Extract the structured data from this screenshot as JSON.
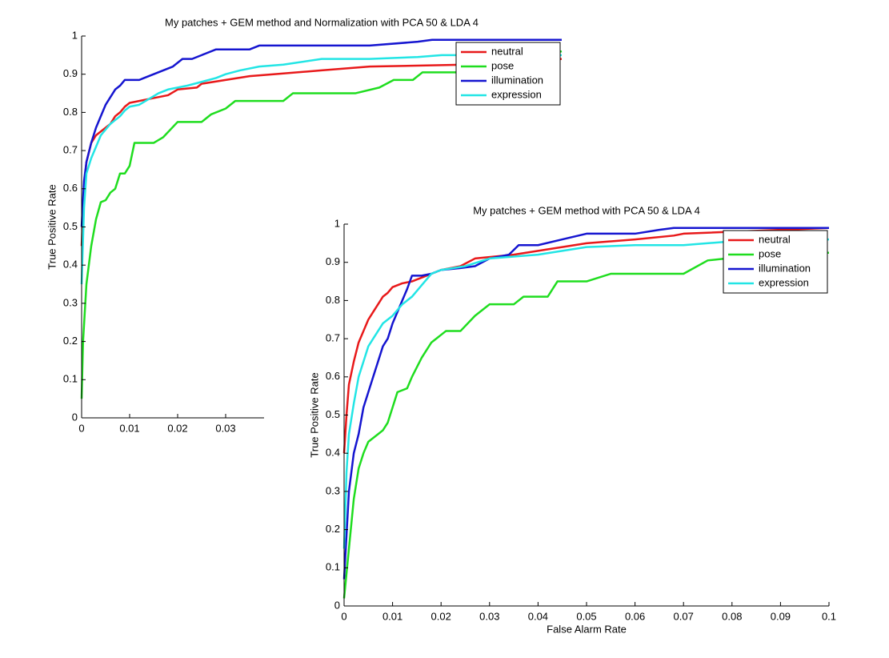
{
  "chart_data": [
    {
      "type": "line",
      "title": "My patches + GEM method and Normalization with PCA 50 & LDA 4",
      "y_label": "True Positive Rate",
      "xlim": [
        0,
        0.1
      ],
      "xticks": [
        0,
        0.01,
        0.02,
        0.03
      ],
      "ylim": [
        0,
        1
      ],
      "yticks": [
        0,
        0.1,
        0.2,
        0.3,
        0.4,
        0.5,
        0.6,
        0.7,
        0.8,
        0.9,
        1
      ],
      "legend": "northeast",
      "series": [
        {
          "name": "neutral",
          "color": "#e8191a",
          "x": [
            0,
            0.0005,
            0.001,
            0.002,
            0.003,
            0.004,
            0.005,
            0.006,
            0.007,
            0.008,
            0.009,
            0.01,
            0.012,
            0.014,
            0.016,
            0.018,
            0.02,
            0.024,
            0.025,
            0.03,
            0.035,
            0.04,
            0.05,
            0.06,
            0.08,
            0.09,
            0.1
          ],
          "values": [
            0.45,
            0.6,
            0.67,
            0.72,
            0.74,
            0.75,
            0.76,
            0.77,
            0.79,
            0.8,
            0.815,
            0.825,
            0.83,
            0.835,
            0.84,
            0.845,
            0.86,
            0.865,
            0.875,
            0.885,
            0.895,
            0.9,
            0.91,
            0.92,
            0.925,
            0.935,
            0.94
          ]
        },
        {
          "name": "pose",
          "color": "#1fdd1f",
          "x": [
            0,
            0.0003,
            0.001,
            0.002,
            0.003,
            0.004,
            0.005,
            0.006,
            0.007,
            0.008,
            0.009,
            0.01,
            0.011,
            0.015,
            0.017,
            0.02,
            0.025,
            0.027,
            0.03,
            0.032,
            0.042,
            0.044,
            0.057,
            0.062,
            0.065,
            0.069,
            0.071,
            0.083,
            0.088,
            0.1
          ],
          "values": [
            0.05,
            0.2,
            0.35,
            0.45,
            0.52,
            0.565,
            0.57,
            0.59,
            0.6,
            0.64,
            0.64,
            0.66,
            0.72,
            0.72,
            0.735,
            0.775,
            0.775,
            0.795,
            0.81,
            0.83,
            0.83,
            0.85,
            0.85,
            0.865,
            0.885,
            0.885,
            0.905,
            0.905,
            0.92,
            0.96
          ]
        },
        {
          "name": "illumination",
          "color": "#1515d0",
          "x": [
            0,
            0.0005,
            0.001,
            0.002,
            0.003,
            0.004,
            0.005,
            0.006,
            0.007,
            0.008,
            0.009,
            0.012,
            0.013,
            0.015,
            0.017,
            0.019,
            0.021,
            0.023,
            0.025,
            0.028,
            0.035,
            0.037,
            0.06,
            0.07,
            0.073,
            0.1
          ],
          "values": [
            0.5,
            0.62,
            0.67,
            0.72,
            0.76,
            0.79,
            0.82,
            0.84,
            0.86,
            0.87,
            0.885,
            0.885,
            0.89,
            0.9,
            0.91,
            0.92,
            0.94,
            0.94,
            0.95,
            0.965,
            0.965,
            0.975,
            0.975,
            0.985,
            0.99,
            0.99
          ]
        },
        {
          "name": "expression",
          "color": "#22e5e5",
          "x": [
            0,
            0.0005,
            0.001,
            0.002,
            0.003,
            0.004,
            0.005,
            0.006,
            0.007,
            0.008,
            0.009,
            0.01,
            0.012,
            0.014,
            0.016,
            0.018,
            0.02,
            0.022,
            0.025,
            0.028,
            0.03,
            0.033,
            0.037,
            0.042,
            0.05,
            0.06,
            0.07,
            0.075,
            0.1
          ],
          "values": [
            0.35,
            0.55,
            0.64,
            0.68,
            0.71,
            0.74,
            0.755,
            0.77,
            0.78,
            0.79,
            0.805,
            0.815,
            0.82,
            0.835,
            0.85,
            0.86,
            0.865,
            0.87,
            0.88,
            0.89,
            0.9,
            0.91,
            0.92,
            0.925,
            0.94,
            0.94,
            0.945,
            0.95,
            0.95
          ]
        }
      ]
    },
    {
      "type": "line",
      "title": "My patches + GEM method with PCA 50 & LDA 4",
      "x_label": "False Alarm Rate",
      "y_label": "True Positive Rate",
      "xlim": [
        0,
        0.1
      ],
      "xticks": [
        0,
        0.01,
        0.02,
        0.03,
        0.04,
        0.05,
        0.06,
        0.07,
        0.08,
        0.09,
        0.1
      ],
      "ylim": [
        0,
        1
      ],
      "yticks": [
        0,
        0.1,
        0.2,
        0.3,
        0.4,
        0.5,
        0.6,
        0.7,
        0.8,
        0.9,
        1
      ],
      "legend": "northeast",
      "series": [
        {
          "name": "neutral",
          "color": "#e8191a",
          "x": [
            0,
            0.0005,
            0.001,
            0.002,
            0.003,
            0.004,
            0.005,
            0.006,
            0.007,
            0.008,
            0.009,
            0.01,
            0.012,
            0.014,
            0.016,
            0.018,
            0.02,
            0.024,
            0.027,
            0.035,
            0.04,
            0.045,
            0.05,
            0.06,
            0.068,
            0.07,
            0.1
          ],
          "values": [
            0.4,
            0.5,
            0.58,
            0.64,
            0.69,
            0.72,
            0.75,
            0.77,
            0.79,
            0.81,
            0.82,
            0.835,
            0.845,
            0.85,
            0.86,
            0.87,
            0.88,
            0.89,
            0.91,
            0.92,
            0.93,
            0.94,
            0.95,
            0.96,
            0.97,
            0.975,
            0.99
          ]
        },
        {
          "name": "pose",
          "color": "#1fdd1f",
          "x": [
            0,
            0.001,
            0.002,
            0.003,
            0.004,
            0.005,
            0.006,
            0.007,
            0.008,
            0.009,
            0.01,
            0.011,
            0.013,
            0.014,
            0.016,
            0.018,
            0.019,
            0.02,
            0.021,
            0.024,
            0.027,
            0.03,
            0.035,
            0.037,
            0.042,
            0.044,
            0.05,
            0.055,
            0.07,
            0.075,
            0.09,
            0.1
          ],
          "values": [
            0.02,
            0.15,
            0.28,
            0.36,
            0.4,
            0.43,
            0.44,
            0.45,
            0.46,
            0.48,
            0.52,
            0.56,
            0.57,
            0.6,
            0.65,
            0.69,
            0.7,
            0.71,
            0.72,
            0.72,
            0.76,
            0.79,
            0.79,
            0.81,
            0.81,
            0.85,
            0.85,
            0.87,
            0.87,
            0.905,
            0.925,
            0.925
          ]
        },
        {
          "name": "illumination",
          "color": "#1515d0",
          "x": [
            0,
            0.001,
            0.002,
            0.003,
            0.004,
            0.005,
            0.006,
            0.007,
            0.008,
            0.009,
            0.01,
            0.011,
            0.012,
            0.013,
            0.014,
            0.016,
            0.018,
            0.02,
            0.024,
            0.027,
            0.03,
            0.034,
            0.036,
            0.04,
            0.045,
            0.05,
            0.06,
            0.065,
            0.068,
            0.1
          ],
          "values": [
            0.07,
            0.3,
            0.4,
            0.45,
            0.52,
            0.56,
            0.6,
            0.64,
            0.68,
            0.7,
            0.74,
            0.77,
            0.8,
            0.83,
            0.865,
            0.865,
            0.87,
            0.88,
            0.885,
            0.89,
            0.91,
            0.92,
            0.945,
            0.945,
            0.96,
            0.975,
            0.975,
            0.985,
            0.99,
            0.99
          ]
        },
        {
          "name": "expression",
          "color": "#22e5e5",
          "x": [
            0,
            0.0005,
            0.001,
            0.002,
            0.003,
            0.004,
            0.005,
            0.006,
            0.007,
            0.008,
            0.009,
            0.01,
            0.012,
            0.014,
            0.016,
            0.018,
            0.02,
            0.025,
            0.03,
            0.035,
            0.04,
            0.045,
            0.05,
            0.06,
            0.07,
            0.08,
            0.1
          ],
          "values": [
            0.15,
            0.35,
            0.45,
            0.53,
            0.6,
            0.64,
            0.68,
            0.7,
            0.72,
            0.74,
            0.75,
            0.76,
            0.79,
            0.81,
            0.84,
            0.87,
            0.88,
            0.89,
            0.91,
            0.915,
            0.92,
            0.93,
            0.94,
            0.945,
            0.945,
            0.955,
            0.96
          ]
        }
      ]
    }
  ]
}
